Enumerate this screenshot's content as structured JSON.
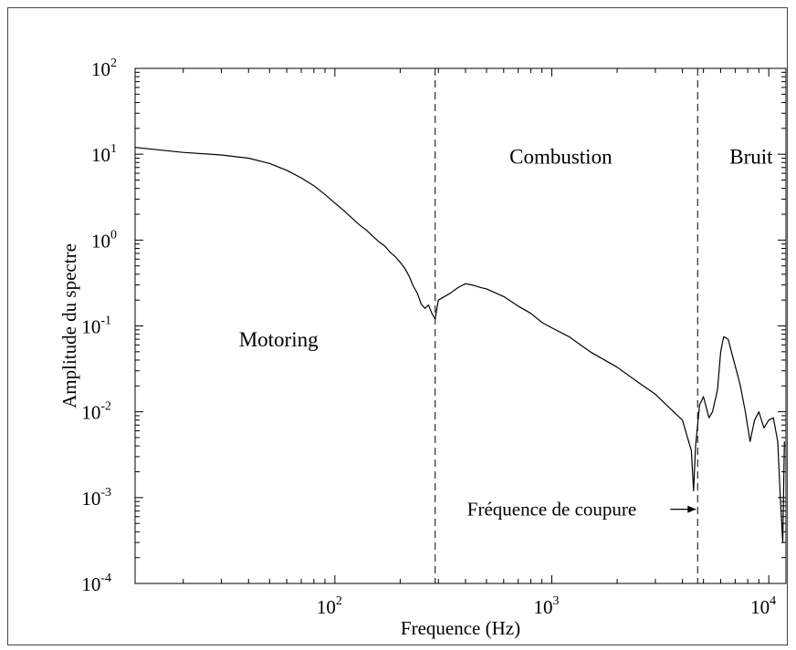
{
  "chart_data": {
    "type": "line",
    "xlabel": "Frequence (Hz)",
    "ylabel": "Amplitude du spectre",
    "x_scale": "log",
    "y_scale": "log",
    "xlim": [
      12,
      12000
    ],
    "ylim": [
      0.0001,
      100
    ],
    "x_ticks": [
      {
        "value": 100,
        "base": "10",
        "exp": "2"
      },
      {
        "value": 1000,
        "base": "10",
        "exp": "3"
      },
      {
        "value": 10000,
        "base": "10",
        "exp": "4"
      }
    ],
    "y_ticks": [
      {
        "value": 100,
        "base": "10",
        "exp": "2"
      },
      {
        "value": 10,
        "base": "10",
        "exp": "1"
      },
      {
        "value": 1,
        "base": "10",
        "exp": "0"
      },
      {
        "value": 0.1,
        "base": "10",
        "exp": "-1"
      },
      {
        "value": 0.01,
        "base": "10",
        "exp": "-2"
      },
      {
        "value": 0.001,
        "base": "10",
        "exp": "-3"
      },
      {
        "value": 0.0001,
        "base": "10",
        "exp": "-4"
      }
    ],
    "grid": false,
    "cutoff_lines": [
      290,
      4700
    ],
    "regions": [
      {
        "label": "Motoring",
        "x": 55,
        "y": 0.058
      },
      {
        "label": "Combustion",
        "x": 1100,
        "y": 7.8
      },
      {
        "label": "Bruit",
        "x": 8300,
        "y": 7.8
      }
    ],
    "annotation": {
      "text": "Fréquence de coupure",
      "x": 1000,
      "y": 0.00075,
      "arrow_to": [
        4700,
        0.00075
      ]
    },
    "series": [
      {
        "color": "#000000",
        "points": [
          [
            12,
            12
          ],
          [
            20,
            10.5
          ],
          [
            30,
            9.8
          ],
          [
            40,
            9.0
          ],
          [
            50,
            7.8
          ],
          [
            60,
            6.5
          ],
          [
            70,
            5.3
          ],
          [
            80,
            4.3
          ],
          [
            90,
            3.4
          ],
          [
            100,
            2.7
          ],
          [
            110,
            2.2
          ],
          [
            120,
            1.8
          ],
          [
            130,
            1.5
          ],
          [
            140,
            1.3
          ],
          [
            150,
            1.1
          ],
          [
            160,
            0.95
          ],
          [
            170,
            0.85
          ],
          [
            180,
            0.72
          ],
          [
            190,
            0.64
          ],
          [
            200,
            0.55
          ],
          [
            210,
            0.47
          ],
          [
            220,
            0.38
          ],
          [
            230,
            0.29
          ],
          [
            240,
            0.24
          ],
          [
            250,
            0.18
          ],
          [
            260,
            0.16
          ],
          [
            270,
            0.175
          ],
          [
            280,
            0.14
          ],
          [
            290,
            0.12
          ],
          [
            300,
            0.2
          ],
          [
            320,
            0.22
          ],
          [
            340,
            0.24
          ],
          [
            370,
            0.28
          ],
          [
            400,
            0.31
          ],
          [
            430,
            0.3
          ],
          [
            470,
            0.28
          ],
          [
            500,
            0.27
          ],
          [
            600,
            0.22
          ],
          [
            700,
            0.17
          ],
          [
            800,
            0.14
          ],
          [
            900,
            0.11
          ],
          [
            1000,
            0.095
          ],
          [
            1200,
            0.075
          ],
          [
            1500,
            0.05
          ],
          [
            2000,
            0.033
          ],
          [
            2500,
            0.022
          ],
          [
            3000,
            0.016
          ],
          [
            3500,
            0.011
          ],
          [
            4000,
            0.008
          ],
          [
            4400,
            0.0035
          ],
          [
            4500,
            0.0012
          ],
          [
            4600,
            0.004
          ],
          [
            4800,
            0.012
          ],
          [
            5000,
            0.015
          ],
          [
            5300,
            0.0085
          ],
          [
            5500,
            0.01
          ],
          [
            5800,
            0.018
          ],
          [
            6000,
            0.05
          ],
          [
            6200,
            0.075
          ],
          [
            6500,
            0.07
          ],
          [
            6800,
            0.045
          ],
          [
            7100,
            0.03
          ],
          [
            7400,
            0.02
          ],
          [
            7800,
            0.01
          ],
          [
            8200,
            0.0045
          ],
          [
            8600,
            0.008
          ],
          [
            9000,
            0.01
          ],
          [
            9500,
            0.0065
          ],
          [
            10000,
            0.008
          ],
          [
            10500,
            0.0085
          ],
          [
            11000,
            0.0045
          ],
          [
            11300,
            0.001
          ],
          [
            11600,
            0.0003
          ],
          [
            11800,
            0.0045
          ]
        ]
      }
    ]
  }
}
